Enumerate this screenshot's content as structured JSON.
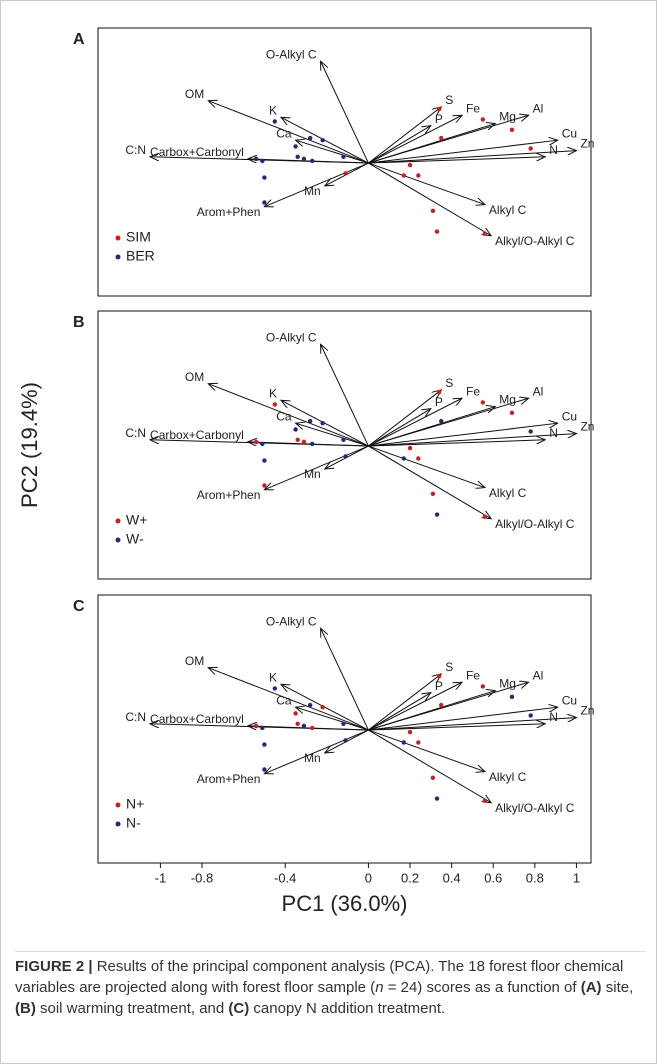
{
  "chart_data": [
    {
      "type": "biplot",
      "panel_label": "A",
      "xlim": [
        -1.3,
        1.07
      ],
      "ylim": [
        -0.64,
        0.65
      ],
      "legend": "lower left",
      "loadings": [
        {
          "label": "O-Alkyl C",
          "x": -0.23,
          "y": 0.49
        },
        {
          "label": "OM",
          "x": -0.77,
          "y": 0.3
        },
        {
          "label": "K",
          "x": -0.42,
          "y": 0.22
        },
        {
          "label": "Ca",
          "x": -0.35,
          "y": 0.11
        },
        {
          "label": "C:N",
          "x": -1.05,
          "y": 0.03
        },
        {
          "label": "Carbox+Carbonyl",
          "x": -0.58,
          "y": 0.02
        },
        {
          "label": "Mn",
          "x": -0.21,
          "y": -0.11
        },
        {
          "label": "Arom+Phen",
          "x": -0.5,
          "y": -0.21
        },
        {
          "label": "S",
          "x": 0.35,
          "y": 0.27
        },
        {
          "label": "P",
          "x": 0.3,
          "y": 0.18
        },
        {
          "label": "Fe",
          "x": 0.45,
          "y": 0.23
        },
        {
          "label": "Mg",
          "x": 0.61,
          "y": 0.19
        },
        {
          "label": "Al",
          "x": 0.77,
          "y": 0.23
        },
        {
          "label": "Cu",
          "x": 0.91,
          "y": 0.11
        },
        {
          "label": "Zn",
          "x": 1.0,
          "y": 0.06
        },
        {
          "label": "N",
          "x": 0.85,
          "y": 0.03
        },
        {
          "label": "Alkyl C",
          "x": 0.56,
          "y": -0.2
        },
        {
          "label": "Alkyl/O-Alkyl C",
          "x": 0.59,
          "y": -0.35
        }
      ],
      "series": [
        {
          "name": "SIM",
          "color": "#d7191c",
          "x": [
            0.34,
            0.35,
            0.69,
            0.78,
            0.2,
            0.17,
            0.24,
            0.31,
            0.33,
            0.56,
            -0.11,
            0.55
          ],
          "y": [
            0.26,
            0.12,
            0.16,
            0.07,
            -0.01,
            -0.06,
            -0.06,
            -0.23,
            -0.33,
            -0.34,
            -0.05,
            0.21
          ]
        },
        {
          "name": "BER",
          "color": "#1f2a7a",
          "x": [
            -0.45,
            -0.54,
            -0.35,
            -0.34,
            -0.28,
            -0.22,
            -0.31,
            -0.12,
            -0.5,
            -0.5,
            -0.27,
            -0.51
          ],
          "y": [
            0.2,
            0.02,
            0.08,
            0.03,
            0.12,
            0.11,
            0.02,
            0.03,
            -0.07,
            -0.19,
            0.01,
            0.01
          ]
        }
      ]
    },
    {
      "type": "biplot",
      "panel_label": "B",
      "xlim": [
        -1.3,
        1.07
      ],
      "ylim": [
        -0.64,
        0.65
      ],
      "legend": "lower left",
      "ylabel": "PC2 (19.4%)",
      "loadings": [
        {
          "label": "O-Alkyl C",
          "x": -0.23,
          "y": 0.49
        },
        {
          "label": "OM",
          "x": -0.77,
          "y": 0.3
        },
        {
          "label": "K",
          "x": -0.42,
          "y": 0.22
        },
        {
          "label": "Ca",
          "x": -0.35,
          "y": 0.11
        },
        {
          "label": "C:N",
          "x": -1.05,
          "y": 0.03
        },
        {
          "label": "Carbox+Carbonyl",
          "x": -0.58,
          "y": 0.02
        },
        {
          "label": "Mn",
          "x": -0.21,
          "y": -0.11
        },
        {
          "label": "Arom+Phen",
          "x": -0.5,
          "y": -0.21
        },
        {
          "label": "S",
          "x": 0.35,
          "y": 0.27
        },
        {
          "label": "P",
          "x": 0.3,
          "y": 0.18
        },
        {
          "label": "Fe",
          "x": 0.45,
          "y": 0.23
        },
        {
          "label": "Mg",
          "x": 0.61,
          "y": 0.19
        },
        {
          "label": "Al",
          "x": 0.77,
          "y": 0.23
        },
        {
          "label": "Cu",
          "x": 0.91,
          "y": 0.11
        },
        {
          "label": "Zn",
          "x": 1.0,
          "y": 0.06
        },
        {
          "label": "N",
          "x": 0.85,
          "y": 0.03
        },
        {
          "label": "Alkyl C",
          "x": 0.56,
          "y": -0.2
        },
        {
          "label": "Alkyl/O-Alkyl C",
          "x": 0.59,
          "y": -0.35
        }
      ],
      "series": [
        {
          "name": "W+",
          "color": "#d7191c",
          "x": [
            -0.45,
            -0.54,
            -0.34,
            0.34,
            0.69,
            0.2,
            0.31,
            0.56,
            -0.5,
            -0.31,
            0.55,
            0.24
          ],
          "y": [
            0.2,
            0.02,
            0.03,
            0.26,
            0.16,
            -0.01,
            -0.23,
            -0.34,
            -0.19,
            0.02,
            0.21,
            -0.06
          ]
        },
        {
          "name": "W-",
          "color": "#1f2a7a",
          "x": [
            0.35,
            0.78,
            0.17,
            0.33,
            -0.11,
            -0.35,
            -0.28,
            -0.22,
            -0.12,
            -0.5,
            -0.27,
            -0.51
          ],
          "y": [
            0.12,
            0.07,
            -0.06,
            -0.33,
            -0.05,
            0.08,
            0.12,
            0.11,
            0.03,
            -0.07,
            0.01,
            0.01
          ]
        }
      ]
    },
    {
      "type": "biplot",
      "panel_label": "C",
      "xlim": [
        -1.3,
        1.07
      ],
      "ylim": [
        -0.64,
        0.65
      ],
      "legend": "lower left",
      "xlabel": "PC1 (36.0%)",
      "xticks": [
        -1,
        -0.8,
        -0.4,
        0,
        0.2,
        0.4,
        0.6,
        0.8,
        1
      ],
      "loadings": [
        {
          "label": "O-Alkyl C",
          "x": -0.23,
          "y": 0.49
        },
        {
          "label": "OM",
          "x": -0.77,
          "y": 0.3
        },
        {
          "label": "K",
          "x": -0.42,
          "y": 0.22
        },
        {
          "label": "Ca",
          "x": -0.35,
          "y": 0.11
        },
        {
          "label": "C:N",
          "x": -1.05,
          "y": 0.03
        },
        {
          "label": "Carbox+Carbonyl",
          "x": -0.58,
          "y": 0.02
        },
        {
          "label": "Mn",
          "x": -0.21,
          "y": -0.11
        },
        {
          "label": "Arom+Phen",
          "x": -0.5,
          "y": -0.21
        },
        {
          "label": "S",
          "x": 0.35,
          "y": 0.27
        },
        {
          "label": "P",
          "x": 0.3,
          "y": 0.18
        },
        {
          "label": "Fe",
          "x": 0.45,
          "y": 0.23
        },
        {
          "label": "Mg",
          "x": 0.61,
          "y": 0.19
        },
        {
          "label": "Al",
          "x": 0.77,
          "y": 0.23
        },
        {
          "label": "Cu",
          "x": 0.91,
          "y": 0.11
        },
        {
          "label": "Zn",
          "x": 1.0,
          "y": 0.06
        },
        {
          "label": "N",
          "x": 0.85,
          "y": 0.03
        },
        {
          "label": "Alkyl C",
          "x": 0.56,
          "y": -0.2
        },
        {
          "label": "Alkyl/O-Alkyl C",
          "x": 0.59,
          "y": -0.35
        }
      ],
      "series": [
        {
          "name": "N+",
          "color": "#d7191c",
          "x": [
            -0.35,
            -0.34,
            -0.22,
            0.34,
            0.35,
            0.24,
            0.31,
            0.56,
            -0.54,
            -0.27,
            0.2,
            0.55
          ],
          "y": [
            0.08,
            0.03,
            0.11,
            0.26,
            0.12,
            -0.06,
            -0.23,
            -0.34,
            0.02,
            0.01,
            -0.01,
            0.21
          ]
        },
        {
          "name": "N-",
          "color": "#1f2a7a",
          "x": [
            -0.45,
            -0.28,
            -0.31,
            -0.12,
            -0.5,
            -0.5,
            -0.51,
            0.69,
            0.78,
            0.17,
            0.33,
            -0.11
          ],
          "y": [
            0.2,
            0.12,
            0.02,
            0.03,
            -0.07,
            -0.19,
            0.01,
            0.16,
            0.07,
            -0.06,
            -0.33,
            -0.05
          ]
        }
      ]
    }
  ],
  "caption": [
    {
      "text": "FIGURE 2 |",
      "style": "bold"
    },
    {
      "text": " Results of the principal component analysis (PCA). The 18 forest floor chemical variables are projected along with forest floor sample (",
      "style": "normal"
    },
    {
      "text": "n",
      "style": "italic"
    },
    {
      "text": " = 24) scores as a function of ",
      "style": "normal"
    },
    {
      "text": "(A)",
      "style": "bold"
    },
    {
      "text": " site, ",
      "style": "normal"
    },
    {
      "text": "(B)",
      "style": "bold"
    },
    {
      "text": " soil warming treatment, and ",
      "style": "normal"
    },
    {
      "text": "(C)",
      "style": "bold"
    },
    {
      "text": " canopy N addition treatment.",
      "style": "normal"
    }
  ]
}
